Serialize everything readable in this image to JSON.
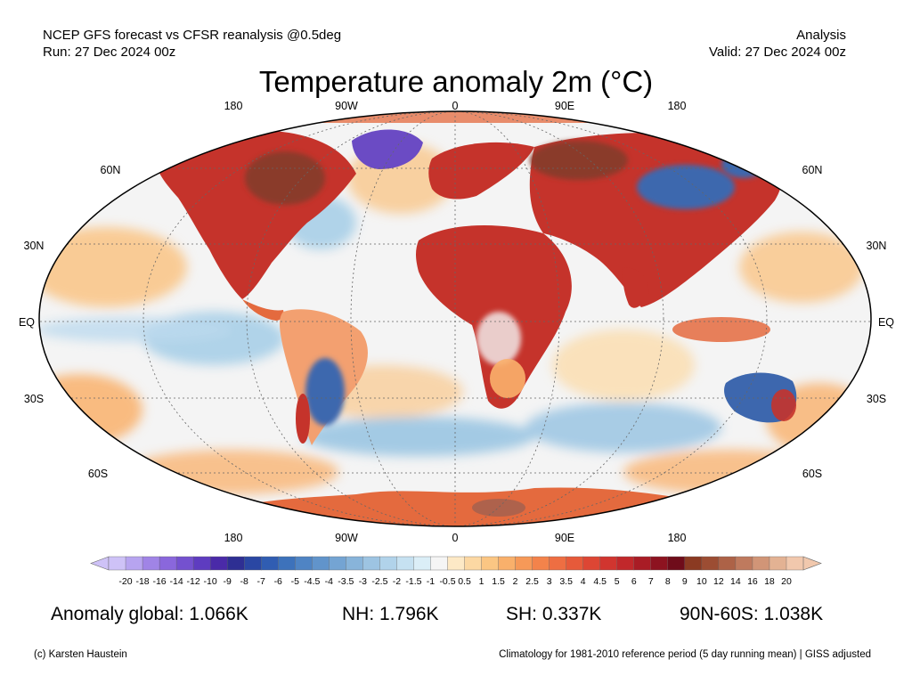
{
  "header": {
    "left_line1": "NCEP GFS forecast vs CFSR reanalysis @0.5deg",
    "left_line2": "Run: 27 Dec 2024 00z",
    "right_line1": "Analysis",
    "right_line2": "Valid: 27 Dec 2024 00z"
  },
  "title": "Temperature anomaly 2m (°C)",
  "map": {
    "projection": "Robinson",
    "lon_labels": [
      "180",
      "90W",
      "0",
      "90E",
      "180"
    ],
    "lat_labels": [
      "60N",
      "30N",
      "EQ",
      "30S",
      "60S"
    ],
    "colors": {
      "land_warm": "#c5332b",
      "land_hot": "#8a3a2c",
      "ocean_neutral": "#f4f4f4",
      "ocean_warm": "#f9c78b",
      "ocean_cool": "#9fcbe6",
      "cold": "#3d67ae",
      "very_cold": "#6b4bc4"
    }
  },
  "colorbar": {
    "ticks": [
      "-20",
      "-18",
      "-16",
      "-14",
      "-12",
      "-10",
      "-9",
      "-8",
      "-7",
      "-6",
      "-5",
      "-4.5",
      "-4",
      "-3.5",
      "-3",
      "-2.5",
      "-2",
      "-1.5",
      "-1",
      "-0.5",
      "0.5",
      "1",
      "1.5",
      "2",
      "2.5",
      "3",
      "3.5",
      "4",
      "4.5",
      "5",
      "6",
      "7",
      "8",
      "9",
      "10",
      "12",
      "14",
      "16",
      "18",
      "20"
    ],
    "colors": [
      "#cec2f7",
      "#b7a4f0",
      "#a084e6",
      "#8a67dc",
      "#7451cf",
      "#5e3cc0",
      "#4a2aa8",
      "#2e2f93",
      "#2a47a3",
      "#305db2",
      "#3d72bb",
      "#4f84c4",
      "#6194cb",
      "#74a4d3",
      "#88b4da",
      "#9dc4e2",
      "#b1d3ea",
      "#c6e1f1",
      "#dbeef7",
      "#f5f5f5",
      "#fde9c6",
      "#fcd8a3",
      "#fbc683",
      "#f9b06b",
      "#f69958",
      "#f3834b",
      "#ee6e42",
      "#e65a3a",
      "#dd4634",
      "#d1352f",
      "#c1282b",
      "#a91c25",
      "#8d1320",
      "#6f0c1a",
      "#8b3a22",
      "#9c4d33",
      "#ad6247",
      "#bf7a5e",
      "#d19577",
      "#e3b293",
      "#f1c8ad"
    ]
  },
  "stats": {
    "global": "Anomaly global: 1.066K",
    "nh": "NH: 1.796K",
    "sh": "SH: 0.337K",
    "arctic": "90N-60S: 1.038K"
  },
  "footer": {
    "left": "(c) Karsten Haustein",
    "right": "Climatology for 1981-2010 reference period (5 day running mean) | GISS adjusted"
  }
}
